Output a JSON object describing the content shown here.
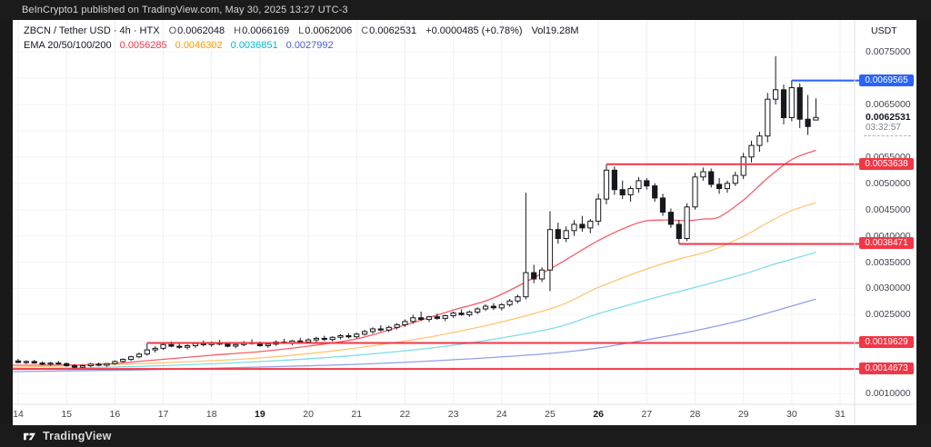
{
  "top_bar": {
    "attribution": "BeInCrypto1 published on TradingView.com, May 30, 2025 13:27 UTC-3"
  },
  "header": {
    "instrument": "ZBCN / Tether USD · 4h · HTX",
    "ohlc": {
      "o_label": "O",
      "o": "0.0062048",
      "h_label": "H",
      "h": "0.0066169",
      "l_label": "L",
      "l": "0.0062006",
      "c_label": "C",
      "c": "0.0062531"
    },
    "change": "+0.0000485 (+0.78%)",
    "volume": "Vol19.28M",
    "ema": {
      "label": "EMA 20/50/100/200",
      "v20": "0.0056285",
      "v50": "0.0046302",
      "v100": "0.0036851",
      "v200": "0.0027992",
      "colors": {
        "v20": "#f23645",
        "v50": "#ff9800",
        "v100": "#00bcd4",
        "v200": "#4a60d8"
      }
    }
  },
  "price_scale": {
    "currency": "USDT",
    "labels": [
      {
        "text": "0.0075000",
        "price": 0.0075
      },
      {
        "text": "0.0065000",
        "price": 0.0065
      },
      {
        "text": "0.0055000",
        "price": 0.0055
      },
      {
        "text": "0.0050000",
        "price": 0.005
      },
      {
        "text": "0.0045000",
        "price": 0.0045
      },
      {
        "text": "0.0040000",
        "price": 0.004
      },
      {
        "text": "0.0035000",
        "price": 0.0035
      },
      {
        "text": "0.0030000",
        "price": 0.003
      },
      {
        "text": "0.0025000",
        "price": 0.0025
      },
      {
        "text": "0.0010000",
        "price": 0.001
      }
    ],
    "badges": [
      {
        "text": "0.0069565",
        "price": 0.0069565,
        "color": "#2962ff"
      },
      {
        "text": "0.0053638",
        "price": 0.0053638,
        "color": "#f23645"
      },
      {
        "text": "0.0038471",
        "price": 0.0038471,
        "color": "#f23645"
      },
      {
        "text": "0.0019629",
        "price": 0.0019629,
        "color": "#f23645"
      },
      {
        "text": "0.0014673",
        "price": 0.0014673,
        "color": "#f23645"
      }
    ],
    "current": {
      "text": "0.0062531",
      "price": 0.0062531,
      "countdown": "03:32:57"
    }
  },
  "x_axis": {
    "labels": [
      {
        "text": "14",
        "day": 14,
        "bold": false
      },
      {
        "text": "15",
        "day": 15,
        "bold": false
      },
      {
        "text": "16",
        "day": 16,
        "bold": false
      },
      {
        "text": "17",
        "day": 17,
        "bold": false
      },
      {
        "text": "18",
        "day": 18,
        "bold": false
      },
      {
        "text": "19",
        "day": 19,
        "bold": true
      },
      {
        "text": "20",
        "day": 20,
        "bold": false
      },
      {
        "text": "21",
        "day": 21,
        "bold": false
      },
      {
        "text": "22",
        "day": 22,
        "bold": false
      },
      {
        "text": "23",
        "day": 23,
        "bold": false
      },
      {
        "text": "24",
        "day": 24,
        "bold": false
      },
      {
        "text": "25",
        "day": 25,
        "bold": false
      },
      {
        "text": "26",
        "day": 26,
        "bold": true
      },
      {
        "text": "27",
        "day": 27,
        "bold": false
      },
      {
        "text": "28",
        "day": 28,
        "bold": false
      },
      {
        "text": "29",
        "day": 29,
        "bold": false
      },
      {
        "text": "30",
        "day": 30,
        "bold": false
      },
      {
        "text": "31",
        "day": 31,
        "bold": false
      }
    ]
  },
  "footer": {
    "brand": "TradingView"
  },
  "chart_data": {
    "type": "candlestick",
    "title": "ZBCN / Tether USD · 4h · HTX",
    "interval": "4h",
    "candles_per_day": 6,
    "x_range_days_may_2025": [
      14,
      31
    ],
    "ylim": [
      0.0008,
      0.0081
    ],
    "price_grid_step": 0.0005,
    "up_color": "#ffffff",
    "down_color": "#17181c",
    "outline_color": "#17181c",
    "candles": [
      [
        0.00162,
        0.00166,
        0.00158,
        0.00159
      ],
      [
        0.00159,
        0.00163,
        0.00156,
        0.00161
      ],
      [
        0.00161,
        0.00164,
        0.00157,
        0.00158
      ],
      [
        0.00158,
        0.00161,
        0.00154,
        0.00156
      ],
      [
        0.00156,
        0.0016,
        0.00153,
        0.00158
      ],
      [
        0.00158,
        0.00162,
        0.00155,
        0.00157
      ],
      [
        0.00157,
        0.00159,
        0.00151,
        0.00153
      ],
      [
        0.00153,
        0.00156,
        0.00147,
        0.0015
      ],
      [
        0.0015,
        0.00155,
        0.00148,
        0.00153
      ],
      [
        0.00153,
        0.00158,
        0.0015,
        0.00156
      ],
      [
        0.00156,
        0.00159,
        0.00152,
        0.00154
      ],
      [
        0.00154,
        0.00158,
        0.00151,
        0.00157
      ],
      [
        0.00157,
        0.00163,
        0.00155,
        0.00161
      ],
      [
        0.00161,
        0.00167,
        0.00159,
        0.00165
      ],
      [
        0.00165,
        0.00172,
        0.00162,
        0.0017
      ],
      [
        0.0017,
        0.00178,
        0.00167,
        0.00175
      ],
      [
        0.00175,
        0.00196,
        0.00172,
        0.00183
      ],
      [
        0.00183,
        0.0019,
        0.00178,
        0.00186
      ],
      [
        0.00186,
        0.00197,
        0.00183,
        0.00193
      ],
      [
        0.00193,
        0.00199,
        0.00188,
        0.0019
      ],
      [
        0.0019,
        0.00196,
        0.00185,
        0.00188
      ],
      [
        0.00188,
        0.00194,
        0.00184,
        0.00191
      ],
      [
        0.00191,
        0.00198,
        0.00187,
        0.00195
      ],
      [
        0.00195,
        0.00201,
        0.0019,
        0.00193
      ],
      [
        0.00193,
        0.00199,
        0.00189,
        0.00196
      ],
      [
        0.00196,
        0.00202,
        0.00192,
        0.00194
      ],
      [
        0.00194,
        0.00198,
        0.00188,
        0.0019
      ],
      [
        0.0019,
        0.00195,
        0.00186,
        0.00193
      ],
      [
        0.00193,
        0.002,
        0.0019,
        0.00197
      ],
      [
        0.00197,
        0.00203,
        0.00193,
        0.00195
      ],
      [
        0.00195,
        0.00199,
        0.00189,
        0.00191
      ],
      [
        0.00191,
        0.00196,
        0.00187,
        0.00194
      ],
      [
        0.00194,
        0.00201,
        0.00191,
        0.00198
      ],
      [
        0.00198,
        0.00204,
        0.00194,
        0.00196
      ],
      [
        0.00196,
        0.00202,
        0.00192,
        0.002
      ],
      [
        0.002,
        0.00206,
        0.00196,
        0.00198
      ],
      [
        0.00198,
        0.00205,
        0.00195,
        0.00202
      ],
      [
        0.00202,
        0.00208,
        0.00198,
        0.00205
      ],
      [
        0.00205,
        0.0021,
        0.002,
        0.00203
      ],
      [
        0.00203,
        0.00209,
        0.00199,
        0.00207
      ],
      [
        0.00207,
        0.00213,
        0.00203,
        0.0021
      ],
      [
        0.0021,
        0.00215,
        0.00205,
        0.00208
      ],
      [
        0.00208,
        0.00216,
        0.00205,
        0.00213
      ],
      [
        0.00213,
        0.00221,
        0.0021,
        0.00218
      ],
      [
        0.00218,
        0.00226,
        0.00214,
        0.00223
      ],
      [
        0.00223,
        0.0023,
        0.00218,
        0.00221
      ],
      [
        0.00221,
        0.00229,
        0.00217,
        0.00226
      ],
      [
        0.00226,
        0.00234,
        0.00222,
        0.00231
      ],
      [
        0.00231,
        0.00241,
        0.00227,
        0.00237
      ],
      [
        0.00237,
        0.0025,
        0.00233,
        0.00244
      ],
      [
        0.00244,
        0.00256,
        0.00238,
        0.00241
      ],
      [
        0.00241,
        0.00248,
        0.00236,
        0.00246
      ],
      [
        0.00246,
        0.00252,
        0.0024,
        0.00243
      ],
      [
        0.00243,
        0.0025,
        0.00238,
        0.00248
      ],
      [
        0.00248,
        0.00256,
        0.00244,
        0.00253
      ],
      [
        0.00253,
        0.0026,
        0.00248,
        0.0025
      ],
      [
        0.0025,
        0.00258,
        0.00246,
        0.00255
      ],
      [
        0.00255,
        0.00264,
        0.00251,
        0.00261
      ],
      [
        0.00261,
        0.0027,
        0.00257,
        0.00266
      ],
      [
        0.00266,
        0.00272,
        0.00259,
        0.00263
      ],
      [
        0.00263,
        0.00272,
        0.00258,
        0.00269
      ],
      [
        0.00269,
        0.0028,
        0.00265,
        0.00276
      ],
      [
        0.00276,
        0.00288,
        0.00272,
        0.00284
      ],
      [
        0.00284,
        0.00482,
        0.00279,
        0.0033
      ],
      [
        0.0033,
        0.00345,
        0.0031,
        0.00318
      ],
      [
        0.00318,
        0.0034,
        0.00312,
        0.00335
      ],
      [
        0.00335,
        0.00447,
        0.00295,
        0.00412
      ],
      [
        0.00412,
        0.00425,
        0.00385,
        0.00395
      ],
      [
        0.00395,
        0.00418,
        0.00388,
        0.0041
      ],
      [
        0.0041,
        0.0043,
        0.004,
        0.00422
      ],
      [
        0.00422,
        0.00438,
        0.00408,
        0.00415
      ],
      [
        0.00415,
        0.00432,
        0.00405,
        0.00428
      ],
      [
        0.00428,
        0.0048,
        0.0042,
        0.0047
      ],
      [
        0.0047,
        0.00536,
        0.0046,
        0.00525
      ],
      [
        0.00525,
        0.00532,
        0.00478,
        0.00488
      ],
      [
        0.00488,
        0.00505,
        0.0047,
        0.00478
      ],
      [
        0.00478,
        0.00495,
        0.00465,
        0.0049
      ],
      [
        0.0049,
        0.00512,
        0.00482,
        0.00505
      ],
      [
        0.00505,
        0.0051,
        0.00488,
        0.00495
      ],
      [
        0.00495,
        0.005,
        0.00465,
        0.00472
      ],
      [
        0.00472,
        0.0048,
        0.00438,
        0.00445
      ],
      [
        0.00445,
        0.00452,
        0.00415,
        0.00422
      ],
      [
        0.00422,
        0.0043,
        0.00385,
        0.00395
      ],
      [
        0.00395,
        0.00462,
        0.0039,
        0.00455
      ],
      [
        0.00455,
        0.0052,
        0.0045,
        0.00512
      ],
      [
        0.00512,
        0.0053,
        0.00505,
        0.00522
      ],
      [
        0.00522,
        0.00528,
        0.00492,
        0.00498
      ],
      [
        0.00498,
        0.0051,
        0.0048,
        0.0049
      ],
      [
        0.0049,
        0.00505,
        0.00482,
        0.005
      ],
      [
        0.005,
        0.00522,
        0.00495,
        0.00515
      ],
      [
        0.00515,
        0.00558,
        0.00508,
        0.0055
      ],
      [
        0.0055,
        0.00581,
        0.0054,
        0.00572
      ],
      [
        0.00572,
        0.00598,
        0.0056,
        0.0059
      ],
      [
        0.0059,
        0.00672,
        0.00578,
        0.0066
      ],
      [
        0.0066,
        0.00742,
        0.0065,
        0.00678
      ],
      [
        0.00678,
        0.00688,
        0.00612,
        0.00625
      ],
      [
        0.00625,
        0.00696,
        0.00618,
        0.00682
      ],
      [
        0.00682,
        0.0069,
        0.00605,
        0.00622
      ],
      [
        0.00622,
        0.00668,
        0.00592,
        0.00608
      ],
      [
        0.0062048,
        0.0066169,
        0.0062006,
        0.0062531
      ]
    ],
    "ema_overlays": [
      {
        "period": 20,
        "color": "#f23645",
        "opacity": 0.8,
        "points": [
          [
            0,
            0.001539
          ],
          [
            10,
            0.001556
          ],
          [
            16,
            0.001625
          ],
          [
            24,
            0.001729
          ],
          [
            30,
            0.001798
          ],
          [
            36,
            0.001901
          ],
          [
            42,
            0.00204
          ],
          [
            48,
            0.0023
          ],
          [
            54,
            0.00259
          ],
          [
            59,
            0.00282
          ],
          [
            66,
            0.00337
          ],
          [
            72,
            0.00391
          ],
          [
            77,
            0.00425
          ],
          [
            80,
            0.0043
          ],
          [
            83,
            0.00429
          ],
          [
            85,
            0.00432
          ],
          [
            87,
            0.00436
          ],
          [
            90,
            0.00468
          ],
          [
            93,
            0.0051
          ],
          [
            96,
            0.00545
          ],
          [
            99,
            0.0056285
          ]
        ]
      },
      {
        "period": 50,
        "color": "#ff9800",
        "opacity": 0.55,
        "points": [
          [
            0,
            0.001504
          ],
          [
            16,
            0.001573
          ],
          [
            30,
            0.001677
          ],
          [
            42,
            0.001867
          ],
          [
            54,
            0.00216
          ],
          [
            66,
            0.00261
          ],
          [
            72,
            0.00302
          ],
          [
            78,
            0.00337
          ],
          [
            82,
            0.00356
          ],
          [
            86,
            0.00372
          ],
          [
            90,
            0.00399
          ],
          [
            93,
            0.00425
          ],
          [
            96,
            0.00448
          ],
          [
            99,
            0.0046302
          ]
        ]
      },
      {
        "period": 100,
        "color": "#00bcd4",
        "opacity": 0.5,
        "points": [
          [
            0,
            0.001469
          ],
          [
            16,
            0.001521
          ],
          [
            30,
            0.001608
          ],
          [
            42,
            0.001729
          ],
          [
            54,
            0.001919
          ],
          [
            66,
            0.00223
          ],
          [
            72,
            0.00252
          ],
          [
            78,
            0.00278
          ],
          [
            84,
            0.00302
          ],
          [
            90,
            0.00327
          ],
          [
            94,
            0.00347
          ],
          [
            99,
            0.0036851
          ]
        ]
      },
      {
        "period": 200,
        "color": "#4a60d8",
        "opacity": 0.6,
        "points": [
          [
            0,
            0.001417
          ],
          [
            16,
            0.001452
          ],
          [
            30,
            0.001504
          ],
          [
            42,
            0.001556
          ],
          [
            54,
            0.001642
          ],
          [
            66,
            0.001763
          ],
          [
            72,
            0.001867
          ],
          [
            78,
            0.002022
          ],
          [
            84,
            0.002195
          ],
          [
            90,
            0.002403
          ],
          [
            94,
            0.002576
          ],
          [
            99,
            0.0027992
          ]
        ]
      }
    ],
    "levels": [
      {
        "price": 0.0069565,
        "color": "#2962ff",
        "from_index": 96
      },
      {
        "price": 0.0053638,
        "color": "#f23645",
        "from_index": 73
      },
      {
        "price": 0.0038471,
        "color": "#f23645",
        "from_index": 82
      },
      {
        "price": 0.0019629,
        "color": "#f23645",
        "from_index": 16
      },
      {
        "price": 0.0014673,
        "color": "#f23645",
        "from_index": -1
      }
    ]
  }
}
